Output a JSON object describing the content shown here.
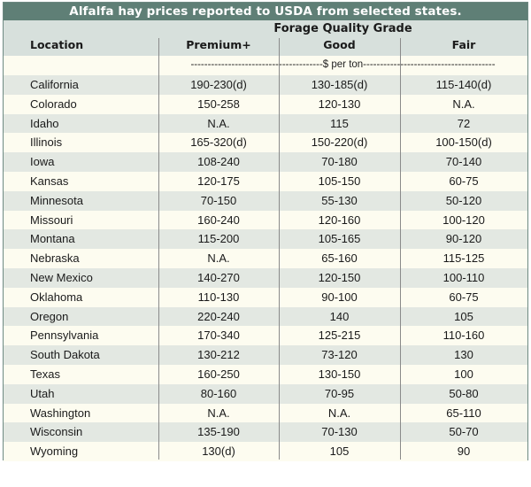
{
  "title": "Alfalfa hay prices reported to USDA from selected states.",
  "header": {
    "group": "Forage Quality Grade",
    "location": "Location",
    "columns": [
      "Premium+",
      "Good",
      "Fair"
    ]
  },
  "units": "---------------------------------------$ per ton---------------------------------------",
  "rows": [
    {
      "location": "California",
      "premium": "190-230(d)",
      "good": "130-185(d)",
      "fair": "115-140(d)"
    },
    {
      "location": "Colorado",
      "premium": "150-258",
      "good": "120-130",
      "fair": "N.A."
    },
    {
      "location": "Idaho",
      "premium": "N.A.",
      "good": "115",
      "fair": "72"
    },
    {
      "location": "Illinois",
      "premium": "165-320(d)",
      "good": "150-220(d)",
      "fair": "100-150(d)"
    },
    {
      "location": "Iowa",
      "premium": "108-240",
      "good": "70-180",
      "fair": "70-140"
    },
    {
      "location": "Kansas",
      "premium": "120-175",
      "good": "105-150",
      "fair": "60-75"
    },
    {
      "location": "Minnesota",
      "premium": "70-150",
      "good": "55-130",
      "fair": "50-120"
    },
    {
      "location": "Missouri",
      "premium": "160-240",
      "good": "120-160",
      "fair": "100-120"
    },
    {
      "location": "Montana",
      "premium": "115-200",
      "good": "105-165",
      "fair": "90-120"
    },
    {
      "location": "Nebraska",
      "premium": "N.A.",
      "good": "65-160",
      "fair": "115-125"
    },
    {
      "location": "New Mexico",
      "premium": "140-270",
      "good": "120-150",
      "fair": "100-110"
    },
    {
      "location": "Oklahoma",
      "premium": "110-130",
      "good": "90-100",
      "fair": "60-75"
    },
    {
      "location": "Oregon",
      "premium": "220-240",
      "good": "140",
      "fair": "105"
    },
    {
      "location": "Pennsylvania",
      "premium": "170-340",
      "good": "125-215",
      "fair": "110-160"
    },
    {
      "location": "South Dakota",
      "premium": "130-212",
      "good": "73-120",
      "fair": "130"
    },
    {
      "location": "Texas",
      "premium": "160-250",
      "good": "130-150",
      "fair": "100"
    },
    {
      "location": "Utah",
      "premium": "80-160",
      "good": "70-95",
      "fair": "50-80"
    },
    {
      "location": "Washington",
      "premium": "N.A.",
      "good": "N.A.",
      "fair": "65-110"
    },
    {
      "location": "Wisconsin",
      "premium": "135-190",
      "good": "70-130",
      "fair": "50-70"
    },
    {
      "location": "Wyoming",
      "premium": "130(d)",
      "good": "105",
      "fair": "90"
    }
  ],
  "colors": {
    "title_bg": "#5f7f76",
    "header_bg": "#d7e0dc",
    "stripe": "#e3e8e2",
    "paper": "#fdfcf0"
  }
}
